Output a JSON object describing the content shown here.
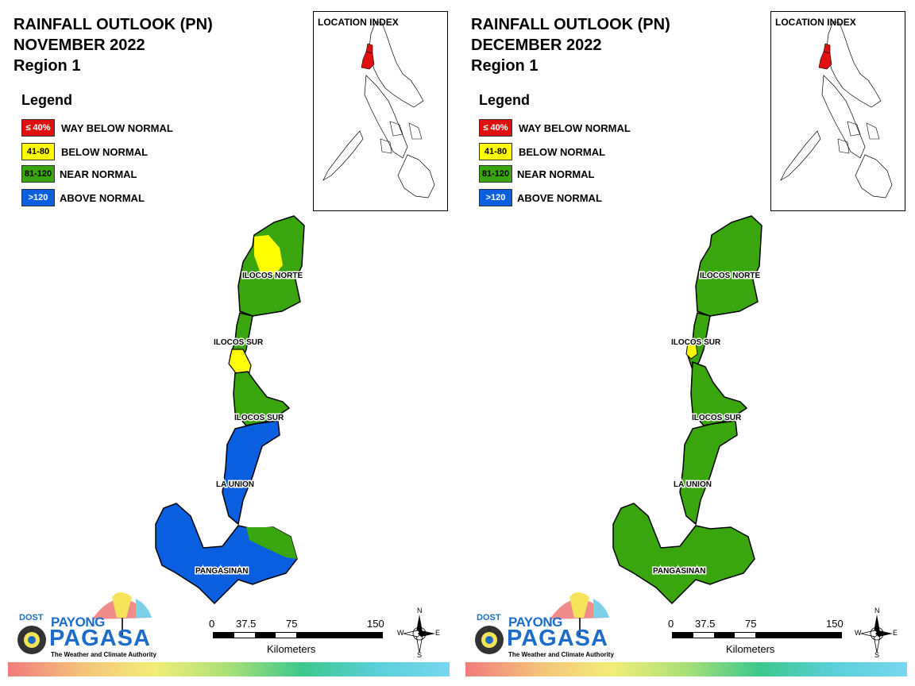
{
  "panels": [
    {
      "title_line1": "RAINFALL OUTLOOK (PN)",
      "title_line2": "NOVEMBER 2022",
      "title_line3": "Region 1",
      "legend_title": "Legend",
      "legend": [
        {
          "swatch": "≤ 40%",
          "label": "WAY BELOW NORMAL",
          "color": "#e01010",
          "text_color": "#ffffff"
        },
        {
          "swatch": "41-80",
          "label": "BELOW NORMAL",
          "color": "#ffff00",
          "text_color": "#000000"
        },
        {
          "swatch": "81-120",
          "label": "NEAR NORMAL",
          "color": "#3aa60e",
          "text_color": "#000000"
        },
        {
          "swatch": ">120",
          "label": "ABOVE NORMAL",
          "color": "#0a5ee0",
          "text_color": "#ffffff"
        }
      ],
      "index_title": "LOCATION INDEX",
      "provinces": [
        "ILOCOS NORTE",
        "ILOCOS SUR",
        "ILOCOS SUR",
        "LA UNION",
        "PANGASINAN"
      ],
      "colors": {
        "north": "#3aa60e",
        "yellow_blob": "#ffff00",
        "sur_upper": "#ffff00",
        "sur_lower": "#3aa60e",
        "launion": "#0a5ee0",
        "pangasinan": "#0a5ee0",
        "pang_east": "#3aa60e"
      },
      "scale": {
        "ticks": [
          "0",
          "37.5",
          "75",
          "150"
        ],
        "unit": "Kilometers"
      },
      "compass": {
        "n": "N",
        "s": "S",
        "e": "E",
        "w": "W"
      },
      "logo": {
        "dost": "DOST",
        "payong": "PAYONG",
        "pagasa": "PAGASA",
        "tagline": "The Weather and Climate Authority"
      }
    },
    {
      "title_line1": "RAINFALL OUTLOOK (PN)",
      "title_line2": "DECEMBER 2022",
      "title_line3": "Region 1",
      "legend_title": "Legend",
      "legend": [
        {
          "swatch": "≤ 40%",
          "label": "WAY BELOW NORMAL",
          "color": "#e01010",
          "text_color": "#ffffff"
        },
        {
          "swatch": "41-80",
          "label": "BELOW NORMAL",
          "color": "#ffff00",
          "text_color": "#000000"
        },
        {
          "swatch": "81-120",
          "label": "NEAR NORMAL",
          "color": "#3aa60e",
          "text_color": "#000000"
        },
        {
          "swatch": ">120",
          "label": "ABOVE NORMAL",
          "color": "#0a5ee0",
          "text_color": "#ffffff"
        }
      ],
      "index_title": "LOCATION INDEX",
      "provinces": [
        "ILOCOS NORTE",
        "ILOCOS SUR",
        "ILOCOS SUR",
        "LA UNION",
        "PANGASINAN"
      ],
      "colors": {
        "north": "#3aa60e",
        "yellow_blob": "#3aa60e",
        "sur_upper": "#3aa60e",
        "sur_lower": "#3aa60e",
        "launion": "#3aa60e",
        "pangasinan": "#3aa60e",
        "pang_east": "#3aa60e"
      },
      "scale": {
        "ticks": [
          "0",
          "37.5",
          "75",
          "150"
        ],
        "unit": "Kilometers"
      },
      "compass": {
        "n": "N",
        "s": "S",
        "e": "E",
        "w": "W"
      },
      "logo": {
        "dost": "DOST",
        "payong": "PAYONG",
        "pagasa": "PAGASA",
        "tagline": "The Weather and Climate Authority"
      }
    }
  ]
}
